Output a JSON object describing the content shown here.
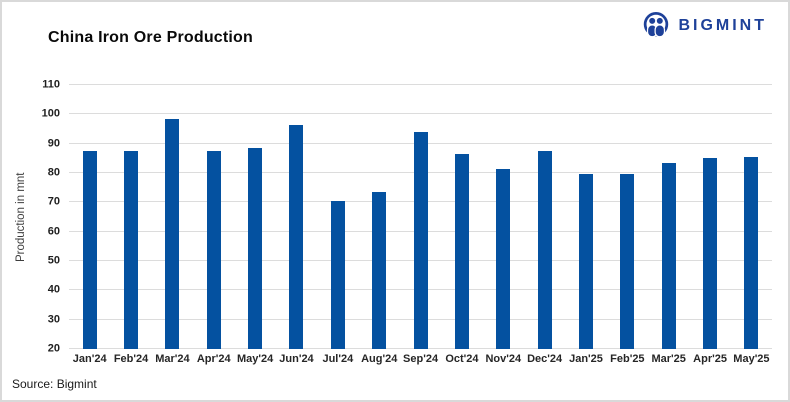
{
  "header": {
    "title": "China Iron Ore Production",
    "brand": {
      "name": "BIGMINT",
      "color": "#1e4199"
    }
  },
  "footer": {
    "source": "Source: Bigmint"
  },
  "colors": {
    "bar": "#0451a0",
    "gridline": "#dcdcdc",
    "brand_blue": "#1e4199",
    "axis_text": "#262626"
  },
  "chart_data": {
    "type": "bar",
    "title": "China Iron Ore Production",
    "categories": [
      "Jan'24",
      "Feb'24",
      "Mar'24",
      "Apr'24",
      "May'24",
      "Jun'24",
      "Jul'24",
      "Aug'24",
      "Sep'24",
      "Oct'24",
      "Nov'24",
      "Dec'24",
      "Jan'25",
      "Feb'25",
      "Mar'25",
      "Apr'25",
      "May'25"
    ],
    "values": [
      87.5,
      87.5,
      98.5,
      87.5,
      88.5,
      96.5,
      70.5,
      73.5,
      94,
      86.5,
      81.5,
      87.5,
      79.5,
      79.5,
      83.5,
      85,
      85.5
    ],
    "xlabel": "",
    "ylabel": "Production in mnt",
    "ylim": [
      20,
      110
    ],
    "ytick_step": 10,
    "grid": true,
    "legend": "none",
    "bar_color": "#0451a0",
    "source": "Bigmint"
  }
}
